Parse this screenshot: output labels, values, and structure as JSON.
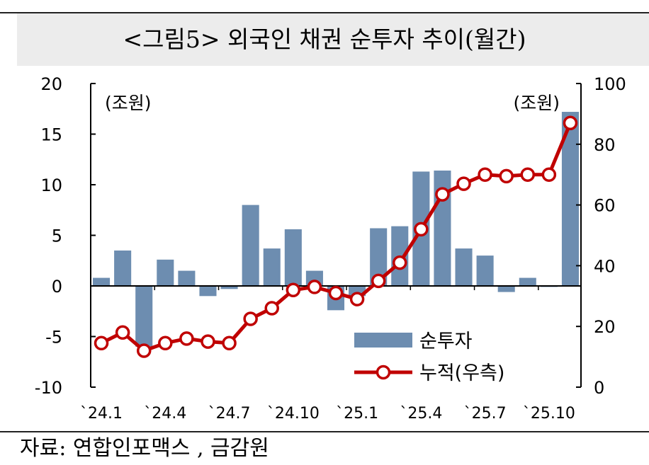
{
  "title": "<그림5>   외국인 채권 순투자 추이(월간)",
  "source": "자료:   연합인포맥스 , 금감원",
  "chart_data": {
    "type": "bar",
    "categories": [
      "`24.1",
      "`24.2",
      "`24.3",
      "`24.4",
      "`24.5",
      "`24.6",
      "`24.7",
      "`24.8",
      "`24.9",
      "`24.10",
      "`24.11",
      "`24.12",
      "`25.1",
      "`25.2",
      "`25.3",
      "`25.4",
      "`25.5",
      "`25.6",
      "`25.7",
      "`25.8",
      "`25.9",
      "`25.10",
      "`25.11"
    ],
    "x_tick_labels": [
      "`24.1",
      "`24.4",
      "`24.7",
      "`24.10",
      "`25.1",
      "`25.4",
      "`25.7",
      "`25.10"
    ],
    "x_tick_indices": [
      0,
      3,
      6,
      9,
      12,
      15,
      18,
      21
    ],
    "series": [
      {
        "name": "순투자",
        "type": "bar",
        "axis": "left",
        "color": "#6d8db0",
        "values": [
          0.8,
          3.5,
          -6.0,
          2.6,
          1.5,
          -1.0,
          -0.3,
          8.0,
          3.7,
          5.6,
          1.5,
          -2.4,
          -1.0,
          5.7,
          5.9,
          11.3,
          11.4,
          3.7,
          3.0,
          -0.6,
          0.8,
          -0.1,
          17.2
        ]
      },
      {
        "name": "누적(우측)",
        "type": "line",
        "axis": "right",
        "color": "#c00000",
        "values": [
          14.5,
          18,
          12,
          14.5,
          16,
          15,
          14.5,
          22.5,
          26,
          32,
          33,
          31,
          29,
          35,
          41,
          52,
          63.5,
          67,
          70,
          69.5,
          70,
          70,
          87
        ]
      }
    ],
    "y_left": {
      "unit": "(조원)",
      "min": -10,
      "max": 20,
      "ticks": [
        -10,
        -5,
        0,
        5,
        10,
        15,
        20
      ]
    },
    "y_right": {
      "unit": "(조원)",
      "min": 0,
      "max": 100,
      "ticks": [
        0,
        20,
        40,
        60,
        80,
        100
      ]
    },
    "legend_position": "lower-right",
    "grid": false
  }
}
